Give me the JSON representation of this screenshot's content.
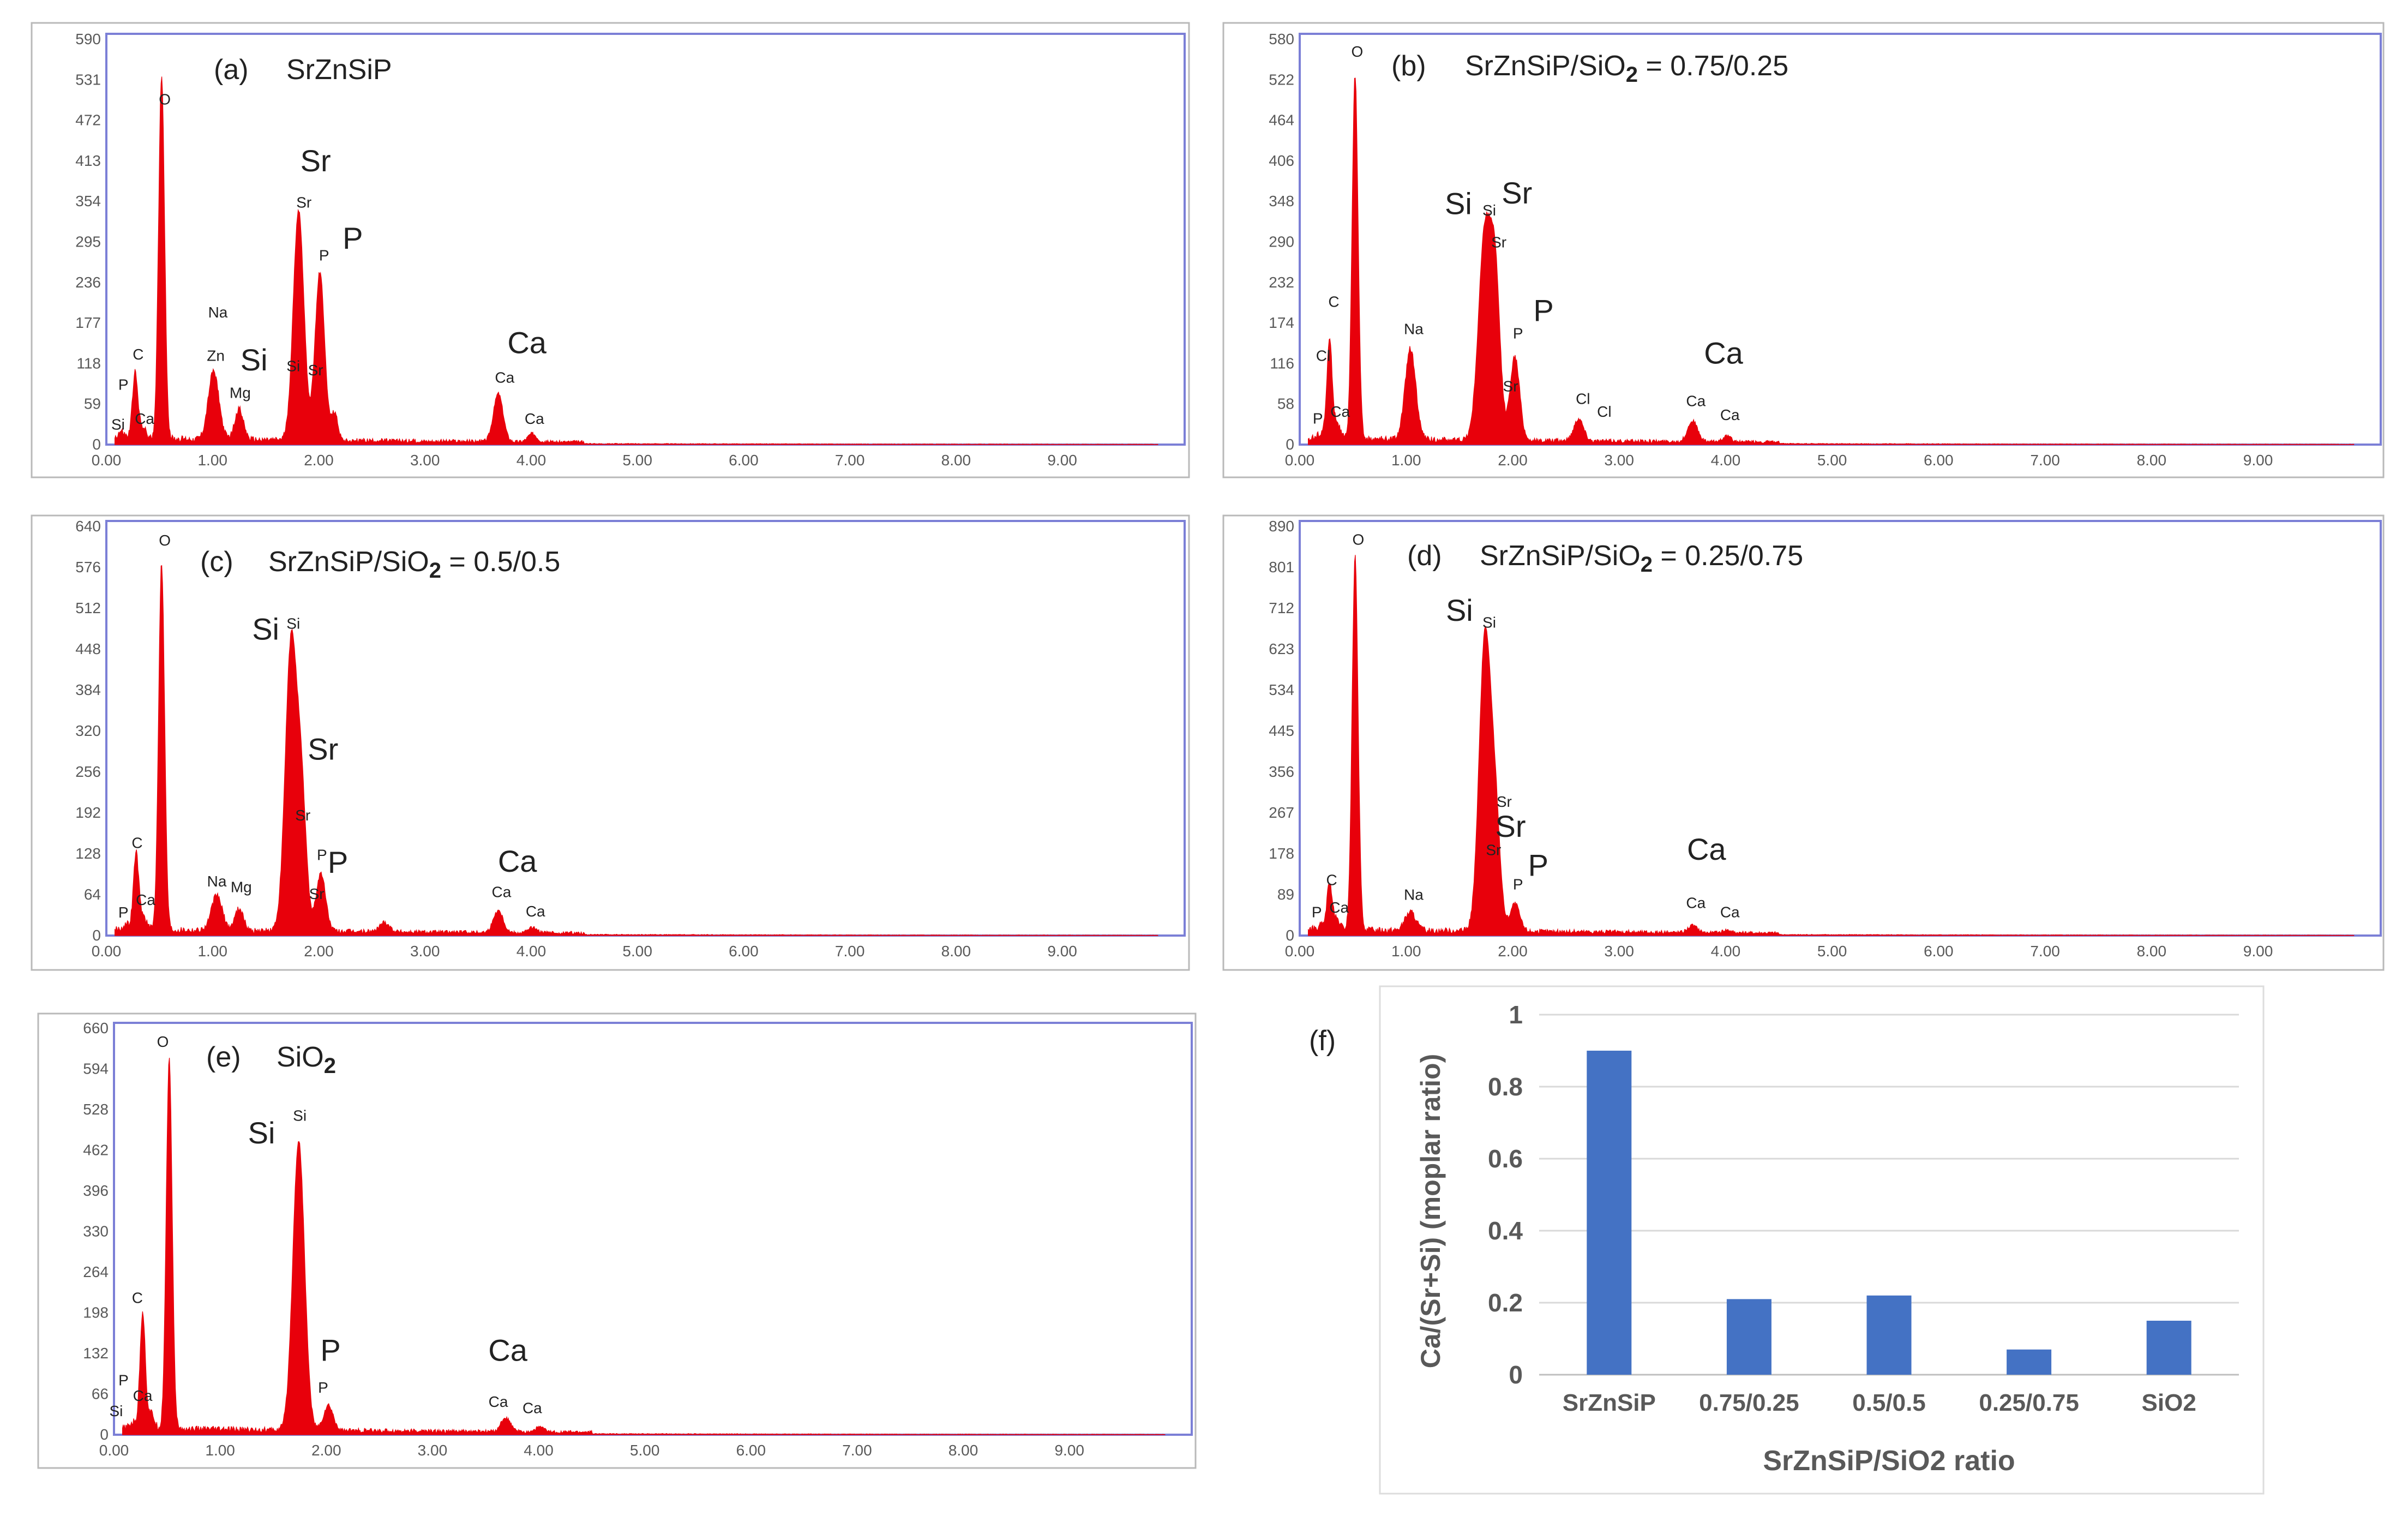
{
  "figure": {
    "panel_labels": [
      "(a)",
      "(b)",
      "(c)",
      "(d)",
      "(e)",
      "(f)"
    ]
  },
  "colors": {
    "spectrum_fill": "#e8000b",
    "frame": "#7b7fd6",
    "outer_frame": "#b9b9b9",
    "bar": "#4472c4",
    "gridline": "#d9d9d9",
    "text": "#222222",
    "axis_text": "#595959"
  },
  "chart_data": [
    {
      "type": "area",
      "panel": "(a)",
      "title": "SrZnSiP",
      "xlabel": "",
      "ylabel": "",
      "xlim": [
        0,
        10
      ],
      "ylim": [
        0,
        590
      ],
      "x_ticks": [
        "0.00",
        "1.00",
        "2.00",
        "3.00",
        "4.00",
        "5.00",
        "6.00",
        "7.00",
        "8.00",
        "9.00"
      ],
      "y_ticks": [
        "0",
        "59",
        "118",
        "177",
        "236",
        "295",
        "354",
        "413",
        "472",
        "531",
        "590"
      ],
      "peaks": [
        {
          "x": 0.14,
          "y": 10,
          "w": 0.03
        },
        {
          "x": 0.27,
          "y": 95,
          "w": 0.025
        },
        {
          "x": 0.34,
          "y": 18,
          "w": 0.03
        },
        {
          "x": 0.52,
          "y": 530,
          "w": 0.028
        },
        {
          "x": 1.01,
          "y": 100,
          "w": 0.05
        },
        {
          "x": 1.25,
          "y": 45,
          "w": 0.04
        },
        {
          "x": 1.81,
          "y": 335,
          "w": 0.05
        },
        {
          "x": 2.01,
          "y": 245,
          "w": 0.045
        },
        {
          "x": 2.15,
          "y": 40,
          "w": 0.03
        },
        {
          "x": 3.69,
          "y": 70,
          "w": 0.045
        },
        {
          "x": 4.01,
          "y": 12,
          "w": 0.04
        }
      ],
      "small_labels": [
        {
          "text": "O",
          "x": 0.55,
          "y": 495
        },
        {
          "text": "Sr",
          "x": 1.86,
          "y": 345
        },
        {
          "text": "P",
          "x": 2.05,
          "y": 268
        },
        {
          "text": "Na",
          "x": 1.05,
          "y": 185
        },
        {
          "text": "C",
          "x": 0.3,
          "y": 124
        },
        {
          "text": "Zn",
          "x": 1.03,
          "y": 122
        },
        {
          "text": "Mg",
          "x": 1.26,
          "y": 68
        },
        {
          "text": "Si",
          "x": 1.76,
          "y": 107
        },
        {
          "text": "Sr",
          "x": 1.97,
          "y": 101
        },
        {
          "text": "P",
          "x": 0.16,
          "y": 80
        },
        {
          "text": "Si",
          "x": 0.11,
          "y": 22
        },
        {
          "text": "Ca",
          "x": 0.36,
          "y": 30
        },
        {
          "text": "Ca",
          "x": 3.75,
          "y": 90
        },
        {
          "text": "Ca",
          "x": 4.03,
          "y": 30
        }
      ],
      "big_labels": [
        {
          "text": "Sr",
          "x": 1.97,
          "y": 398
        },
        {
          "text": "P",
          "x": 2.32,
          "y": 285
        },
        {
          "text": "Si",
          "x": 1.39,
          "y": 108
        },
        {
          "text": "Ca",
          "x": 3.96,
          "y": 133
        }
      ]
    },
    {
      "type": "area",
      "panel": "(b)",
      "title": "SrZnSiP/SiO",
      "title_sub": "2",
      "title_rest": " = 0.75/0.25",
      "xlabel": "",
      "ylabel": "",
      "xlim": [
        0,
        10
      ],
      "ylim": [
        0,
        580
      ],
      "x_ticks": [
        "0.00",
        "1.00",
        "2.00",
        "3.00",
        "4.00",
        "5.00",
        "6.00",
        "7.00",
        "8.00",
        "9.00"
      ],
      "y_ticks": [
        "0",
        "58",
        "116",
        "174",
        "232",
        "290",
        "348",
        "406",
        "464",
        "522",
        "580"
      ],
      "peaks": [
        {
          "x": 0.2,
          "y": 8,
          "w": 0.03
        },
        {
          "x": 0.28,
          "y": 140,
          "w": 0.025
        },
        {
          "x": 0.35,
          "y": 22,
          "w": 0.03
        },
        {
          "x": 0.52,
          "y": 520,
          "w": 0.028
        },
        {
          "x": 1.04,
          "y": 130,
          "w": 0.05
        },
        {
          "x": 1.74,
          "y": 300,
          "w": 0.06
        },
        {
          "x": 1.84,
          "y": 200,
          "w": 0.045
        },
        {
          "x": 2.02,
          "y": 120,
          "w": 0.045
        },
        {
          "x": 2.62,
          "y": 32,
          "w": 0.045
        },
        {
          "x": 3.69,
          "y": 30,
          "w": 0.045
        },
        {
          "x": 4.01,
          "y": 8,
          "w": 0.04
        }
      ],
      "small_labels": [
        {
          "text": "O",
          "x": 0.54,
          "y": 555
        },
        {
          "text": "C",
          "x": 0.32,
          "y": 197
        },
        {
          "text": "Cl",
          "x": 0.22,
          "y": 120
        },
        {
          "text": "P",
          "x": 0.17,
          "y": 30
        },
        {
          "text": "Ca",
          "x": 0.38,
          "y": 40
        },
        {
          "text": "Na",
          "x": 1.07,
          "y": 158
        },
        {
          "text": "Si",
          "x": 1.78,
          "y": 328
        },
        {
          "text": "Sr",
          "x": 1.87,
          "y": 282
        },
        {
          "text": "P",
          "x": 2.05,
          "y": 152
        },
        {
          "text": "Sr",
          "x": 1.98,
          "y": 76
        },
        {
          "text": "Cl",
          "x": 2.66,
          "y": 58
        },
        {
          "text": "Cl",
          "x": 2.86,
          "y": 40
        },
        {
          "text": "Ca",
          "x": 3.72,
          "y": 55
        },
        {
          "text": "Ca",
          "x": 4.04,
          "y": 35
        }
      ],
      "big_labels": [
        {
          "text": "Si",
          "x": 1.49,
          "y": 330
        },
        {
          "text": "Sr",
          "x": 2.04,
          "y": 345
        },
        {
          "text": "P",
          "x": 2.29,
          "y": 177
        },
        {
          "text": "Ca",
          "x": 3.98,
          "y": 116
        }
      ]
    },
    {
      "type": "area",
      "panel": "(c)",
      "title": "SrZnSiP/SiO",
      "title_sub": "2",
      "title_rest": " = 0.5/0.5",
      "xlabel": "",
      "ylabel": "",
      "xlim": [
        0,
        10
      ],
      "ylim": [
        0,
        640
      ],
      "x_ticks": [
        "0.00",
        "1.00",
        "2.00",
        "3.00",
        "4.00",
        "5.00",
        "6.00",
        "7.00",
        "8.00",
        "9.00"
      ],
      "y_ticks": [
        "0",
        "64",
        "128",
        "192",
        "256",
        "320",
        "384",
        "448",
        "512",
        "576",
        "640"
      ],
      "peaks": [
        {
          "x": 0.19,
          "y": 8,
          "w": 0.03
        },
        {
          "x": 0.28,
          "y": 120,
          "w": 0.025
        },
        {
          "x": 0.35,
          "y": 20,
          "w": 0.03
        },
        {
          "x": 0.52,
          "y": 575,
          "w": 0.028
        },
        {
          "x": 1.04,
          "y": 55,
          "w": 0.05
        },
        {
          "x": 1.25,
          "y": 35,
          "w": 0.04
        },
        {
          "x": 1.74,
          "y": 450,
          "w": 0.055
        },
        {
          "x": 1.84,
          "y": 190,
          "w": 0.045
        },
        {
          "x": 2.02,
          "y": 90,
          "w": 0.045
        },
        {
          "x": 2.62,
          "y": 15,
          "w": 0.045
        },
        {
          "x": 3.69,
          "y": 35,
          "w": 0.045
        },
        {
          "x": 4.01,
          "y": 8,
          "w": 0.04
        }
      ],
      "small_labels": [
        {
          "text": "O",
          "x": 0.55,
          "y": 610
        },
        {
          "text": "Si",
          "x": 1.76,
          "y": 480
        },
        {
          "text": "C",
          "x": 0.29,
          "y": 137
        },
        {
          "text": "Sr",
          "x": 1.85,
          "y": 180
        },
        {
          "text": "Na",
          "x": 1.04,
          "y": 77
        },
        {
          "text": "Mg",
          "x": 1.27,
          "y": 68
        },
        {
          "text": "P",
          "x": 2.03,
          "y": 118
        },
        {
          "text": "Sr",
          "x": 1.98,
          "y": 57
        },
        {
          "text": "Ca",
          "x": 0.37,
          "y": 48
        },
        {
          "text": "P",
          "x": 0.16,
          "y": 28
        },
        {
          "text": "Ca",
          "x": 3.72,
          "y": 60
        },
        {
          "text": "Ca",
          "x": 4.04,
          "y": 30
        }
      ],
      "big_labels": [
        {
          "text": "Si",
          "x": 1.5,
          "y": 463
        },
        {
          "text": "Sr",
          "x": 2.04,
          "y": 275
        },
        {
          "text": "P",
          "x": 2.18,
          "y": 98
        },
        {
          "text": "Ca",
          "x": 3.87,
          "y": 100
        }
      ]
    },
    {
      "type": "area",
      "panel": "(d)",
      "title": "SrZnSiP/SiO",
      "title_sub": "2",
      "title_rest": " = 0.25/0.75",
      "xlabel": "",
      "ylabel": "",
      "xlim": [
        0,
        10
      ],
      "ylim": [
        0,
        890
      ],
      "x_ticks": [
        "0.00",
        "1.00",
        "2.00",
        "3.00",
        "4.00",
        "5.00",
        "6.00",
        "7.00",
        "8.00",
        "9.00"
      ],
      "y_ticks": [
        "0",
        "89",
        "178",
        "267",
        "356",
        "445",
        "534",
        "623",
        "712",
        "801",
        "890"
      ],
      "peaks": [
        {
          "x": 0.2,
          "y": 8,
          "w": 0.03
        },
        {
          "x": 0.28,
          "y": 100,
          "w": 0.025
        },
        {
          "x": 0.35,
          "y": 20,
          "w": 0.03
        },
        {
          "x": 0.52,
          "y": 810,
          "w": 0.028
        },
        {
          "x": 1.04,
          "y": 40,
          "w": 0.05
        },
        {
          "x": 1.74,
          "y": 640,
          "w": 0.055
        },
        {
          "x": 1.84,
          "y": 230,
          "w": 0.045
        },
        {
          "x": 2.02,
          "y": 60,
          "w": 0.045
        },
        {
          "x": 3.69,
          "y": 15,
          "w": 0.045
        },
        {
          "x": 4.01,
          "y": 6,
          "w": 0.04
        }
      ],
      "small_labels": [
        {
          "text": "O",
          "x": 0.55,
          "y": 850
        },
        {
          "text": "Si",
          "x": 1.78,
          "y": 670
        },
        {
          "text": "Sr",
          "x": 1.92,
          "y": 280
        },
        {
          "text": "Sr",
          "x": 1.82,
          "y": 175
        },
        {
          "text": "P",
          "x": 2.05,
          "y": 100
        },
        {
          "text": "C",
          "x": 0.3,
          "y": 110
        },
        {
          "text": "P",
          "x": 0.16,
          "y": 40
        },
        {
          "text": "Ca",
          "x": 0.37,
          "y": 50
        },
        {
          "text": "Na",
          "x": 1.07,
          "y": 78
        },
        {
          "text": "Ca",
          "x": 3.72,
          "y": 60
        },
        {
          "text": "Ca",
          "x": 4.04,
          "y": 40
        }
      ],
      "big_labels": [
        {
          "text": "Si",
          "x": 1.5,
          "y": 685
        },
        {
          "text": "Sr",
          "x": 1.98,
          "y": 215
        },
        {
          "text": "P",
          "x": 2.24,
          "y": 130
        },
        {
          "text": "Ca",
          "x": 3.82,
          "y": 165
        }
      ]
    },
    {
      "type": "area",
      "panel": "(e)",
      "title": "SiO",
      "title_sub": "2",
      "title_rest": "",
      "xlabel": "",
      "ylabel": "",
      "xlim": [
        0,
        10
      ],
      "ylim": [
        0,
        660
      ],
      "x_ticks": [
        "0.00",
        "1.00",
        "2.00",
        "3.00",
        "4.00",
        "5.00",
        "6.00",
        "7.00",
        "8.00",
        "9.00"
      ],
      "y_ticks": [
        "0",
        "66",
        "132",
        "198",
        "264",
        "330",
        "396",
        "462",
        "528",
        "594",
        "660"
      ],
      "peaks": [
        {
          "x": 0.18,
          "y": 10,
          "w": 0.03
        },
        {
          "x": 0.27,
          "y": 190,
          "w": 0.025
        },
        {
          "x": 0.35,
          "y": 25,
          "w": 0.03
        },
        {
          "x": 0.52,
          "y": 600,
          "w": 0.028
        },
        {
          "x": 1.74,
          "y": 470,
          "w": 0.055
        },
        {
          "x": 2.02,
          "y": 40,
          "w": 0.045
        },
        {
          "x": 3.69,
          "y": 22,
          "w": 0.045
        },
        {
          "x": 4.01,
          "y": 8,
          "w": 0.04
        }
      ],
      "small_labels": [
        {
          "text": "O",
          "x": 0.46,
          "y": 630
        },
        {
          "text": "Si",
          "x": 1.75,
          "y": 510
        },
        {
          "text": "C",
          "x": 0.22,
          "y": 214
        },
        {
          "text": "P",
          "x": 0.09,
          "y": 80
        },
        {
          "text": "Ca",
          "x": 0.27,
          "y": 55
        },
        {
          "text": "Si",
          "x": 0.02,
          "y": 30
        },
        {
          "text": "P",
          "x": 1.97,
          "y": 68
        },
        {
          "text": "Ca",
          "x": 3.62,
          "y": 45
        },
        {
          "text": "Ca",
          "x": 3.94,
          "y": 35
        }
      ],
      "big_labels": [
        {
          "text": "Si",
          "x": 1.39,
          "y": 473
        },
        {
          "text": "P",
          "x": 2.04,
          "y": 120
        },
        {
          "text": "Ca",
          "x": 3.71,
          "y": 120
        }
      ]
    },
    {
      "type": "bar",
      "panel": "(f)",
      "title": "",
      "xlabel": "SrZnSiP/SiO2 ratio",
      "ylabel": "Ca/(Sr+Si) (moplar ratio)",
      "categories": [
        "SrZnSiP",
        "0.75/0.25",
        "0.5/0.5",
        "0.25/0.75",
        "SiO2"
      ],
      "values": [
        0.9,
        0.21,
        0.22,
        0.07,
        0.15
      ],
      "ylim": [
        0,
        1
      ],
      "y_ticks": [
        "0",
        "0.2",
        "0.4",
        "0.6",
        "0.8",
        "1"
      ],
      "grid": true,
      "legend": "none"
    }
  ]
}
